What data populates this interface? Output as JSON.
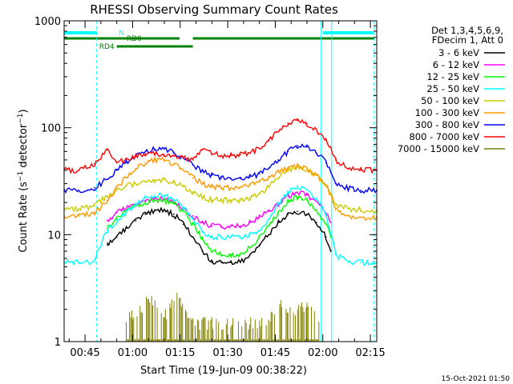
{
  "chart_data": {
    "type": "line",
    "title": "RHESSI Observing Summary Count Rates",
    "xlabel": "Start Time (19-Jun-09 00:38:22)",
    "ylabel": "Count Rate (s⁻¹ detector⁻¹)",
    "yscale": "log",
    "ylim": [
      1,
      1000
    ],
    "xlim_minutes": [
      38.4,
      137.0
    ],
    "x_ticks": [
      {
        "value": 45,
        "label": "00:45"
      },
      {
        "value": 60,
        "label": "01:00"
      },
      {
        "value": 75,
        "label": "01:15"
      },
      {
        "value": 90,
        "label": "01:30"
      },
      {
        "value": 105,
        "label": "01:45"
      },
      {
        "value": 120,
        "label": "02:00"
      },
      {
        "value": 135,
        "label": "02:15"
      }
    ],
    "y_ticks": [
      {
        "value": 1,
        "label": "1"
      },
      {
        "value": 10,
        "label": "10"
      },
      {
        "value": 100,
        "label": "100"
      },
      {
        "value": 1000,
        "label": "1000"
      }
    ],
    "legend_header": [
      "Det 1,3,4,5,6,9,",
      "FDecim 1, Att 0"
    ],
    "legend_position": "right",
    "timestamp": "15-Oct-2021 01:50",
    "series": [
      {
        "name": "3 - 6 keV",
        "color": "#000000",
        "x": [
          52,
          55,
          58,
          61,
          64,
          67,
          70,
          73,
          76,
          79,
          82,
          85,
          88,
          91,
          94,
          97,
          100,
          103,
          106,
          109,
          112,
          115,
          118,
          121,
          122.5
        ],
        "y": [
          8,
          9.5,
          11.5,
          13.5,
          15.5,
          17,
          17,
          15.5,
          12.5,
          9.5,
          7,
          5.5,
          5.5,
          5.5,
          5.5,
          6.5,
          8,
          10,
          13,
          15.5,
          16.5,
          15.5,
          13,
          9.5,
          7
        ]
      },
      {
        "name": "6 - 12 keV",
        "color": "#ff00ff",
        "x": [
          52,
          55,
          58,
          61,
          64,
          67,
          70,
          73,
          76,
          79,
          82,
          85,
          88,
          91,
          94,
          97,
          100,
          103,
          106,
          109,
          112,
          115,
          118,
          121,
          122.5
        ],
        "y": [
          13.5,
          16,
          17.5,
          19,
          20.5,
          21.5,
          21.5,
          20,
          17.5,
          15,
          13,
          12,
          12,
          12,
          12,
          13,
          14.5,
          16.5,
          19.5,
          23,
          25,
          23.5,
          20.5,
          16,
          13
        ]
      },
      {
        "name": "12 - 25 keV",
        "color": "#00ff00",
        "x": [
          52,
          55,
          58,
          61,
          64,
          67,
          70,
          73,
          76,
          79,
          82,
          85,
          88,
          91,
          94,
          97,
          100,
          103,
          106,
          109,
          112,
          115,
          118,
          121,
          122.5
        ],
        "y": [
          11.5,
          14,
          16.5,
          18.5,
          20,
          21,
          21,
          19.5,
          16.5,
          12.5,
          9,
          7,
          6.5,
          6.5,
          6.5,
          7.5,
          9.5,
          12,
          16,
          20.5,
          22.5,
          21,
          17,
          12.5,
          9.5
        ]
      },
      {
        "name": "25 - 50 keV",
        "color": "#00ffff",
        "x": [
          38.4,
          43,
          48,
          52,
          55,
          58,
          61,
          64,
          67,
          70,
          73,
          76,
          79,
          82,
          85,
          88,
          91,
          94,
          97,
          100,
          103,
          106,
          109,
          112,
          115,
          118,
          121,
          124,
          128,
          132,
          137
        ],
        "y": [
          5.5,
          5.5,
          5.5,
          11,
          13,
          16,
          19,
          22,
          23.5,
          23.5,
          21.5,
          18,
          14,
          10.5,
          9.5,
          9.5,
          9.5,
          9.5,
          10,
          11,
          14,
          19,
          24.5,
          28.5,
          26.5,
          22,
          15,
          6.5,
          5.5,
          5.5,
          5.5
        ]
      },
      {
        "name": "50 - 100 keV",
        "color": "#cccc00",
        "x": [
          38.4,
          43,
          48,
          52,
          55,
          58,
          61,
          64,
          67,
          70,
          73,
          76,
          79,
          82,
          85,
          88,
          91,
          94,
          97,
          100,
          103,
          106,
          109,
          112,
          115,
          118,
          121,
          124,
          128,
          132,
          137
        ],
        "y": [
          17.5,
          17.5,
          18.5,
          23,
          26,
          28.5,
          30,
          31.5,
          32.5,
          32.5,
          31,
          28,
          25,
          22.5,
          21,
          21,
          21,
          21,
          22,
          24,
          28,
          34,
          40,
          43,
          41,
          36,
          29,
          19,
          17.5,
          17,
          17
        ]
      },
      {
        "name": "100 - 300 keV",
        "color": "#ff9900",
        "x": [
          38.4,
          43,
          48,
          52,
          55,
          58,
          61,
          64,
          67,
          70,
          73,
          76,
          79,
          82,
          85,
          88,
          91,
          94,
          97,
          100,
          103,
          106,
          109,
          112,
          115,
          118,
          121,
          124,
          128,
          132,
          137
        ],
        "y": [
          15,
          15,
          16,
          21,
          27,
          34,
          41,
          47,
          50,
          50,
          46,
          40,
          34,
          30,
          28,
          27.5,
          27.5,
          28,
          29,
          31,
          34,
          38,
          41.5,
          43.5,
          41,
          36,
          29,
          17,
          15,
          14.5,
          14.5
        ]
      },
      {
        "name": "300 - 800 keV",
        "color": "#0000ff",
        "x": [
          38.4,
          43,
          48,
          52,
          55,
          58,
          61,
          64,
          67,
          70,
          73,
          76,
          79,
          82,
          85,
          88,
          91,
          94,
          97,
          100,
          103,
          106,
          109,
          112,
          115,
          118,
          121,
          124,
          128,
          132,
          137
        ],
        "y": [
          26,
          26,
          27.5,
          33,
          40,
          47,
          54,
          60,
          63,
          63,
          59,
          52,
          45,
          39.5,
          36,
          34,
          33.5,
          33.5,
          34.5,
          37,
          42,
          50,
          60,
          68,
          66,
          58,
          47,
          30,
          27,
          26,
          26
        ]
      },
      {
        "name": "800 - 7000 keV",
        "color": "#ff0000",
        "x": [
          38.4,
          43,
          48,
          52,
          55,
          58,
          61,
          64,
          67,
          70,
          73,
          76,
          79,
          82,
          85,
          88,
          91,
          94,
          97,
          100,
          103,
          106,
          109,
          112,
          115,
          118,
          121,
          124,
          128,
          132,
          137
        ],
        "y": [
          40,
          40,
          46,
          62,
          47,
          51,
          54,
          57,
          57,
          56,
          54,
          52,
          50,
          62,
          57,
          55,
          55,
          56,
          58,
          64,
          75,
          92,
          110,
          117,
          110,
          96,
          76,
          50,
          41,
          40,
          40
        ]
      },
      {
        "name": "7000 - 15000 keV",
        "color": "#808000",
        "x": [
          58,
          60,
          62,
          64,
          66,
          68,
          70,
          72,
          74,
          76,
          78,
          103,
          105,
          107,
          109,
          111,
          113,
          115,
          117,
          119
        ],
        "y": [
          1.8,
          2.1,
          2.3,
          2.6,
          2.8,
          2.3,
          1.9,
          2.6,
          2.9,
          2.3,
          1.7,
          1.7,
          2.3,
          2.6,
          2.3,
          2.1,
          2.4,
          2.6,
          2.2,
          1.8
        ]
      }
    ],
    "attenuator_lines_minutes": [
      48.7,
      136.2
    ],
    "night_lines_minutes": [
      119.5,
      122.8
    ],
    "flags": [
      {
        "label": "N",
        "color": "#00ffff",
        "segments": [
          [
            38.4,
            48.7
          ],
          [
            120.0,
            135.8
          ]
        ]
      },
      {
        "label": "RD0",
        "color": "#008000",
        "segments": [
          [
            38.4,
            74.8
          ],
          [
            79.0,
            136.2
          ]
        ]
      },
      {
        "label": "RD4",
        "color": "#008000",
        "segments": [
          [
            55.0,
            79.0
          ]
        ]
      }
    ]
  }
}
